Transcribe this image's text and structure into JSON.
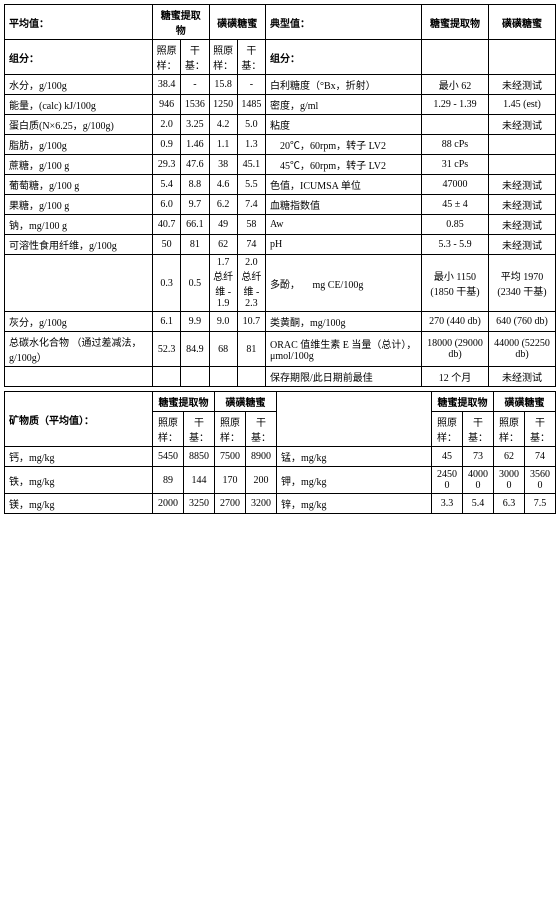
{
  "left_block": {
    "title": "平均值：",
    "row_head": "组分：",
    "group1": "糖蜜提取物",
    "group2": "磺磺糖蜜",
    "sub1": "照原样：",
    "sub2": "干基：",
    "rows": [
      [
        "水分，g/100g",
        "38.4",
        "-",
        "15.8",
        "-"
      ],
      [
        "能量，(calc) kJ/100g",
        "946",
        "1536",
        "1250",
        "1485"
      ],
      [
        "蛋白质(N×6.25，g/100g)",
        "2.0",
        "3.25",
        "4.2",
        "5.0"
      ],
      [
        "脂肪，g/100g",
        "0.9",
        "1.46",
        "1.1",
        "1.3"
      ],
      [
        "蔗糖，g/100 g",
        "29.3",
        "47.6",
        "38",
        "45.1"
      ],
      [
        "葡萄糖，g/100 g",
        "5.4",
        "8.8",
        "4.6",
        "5.5"
      ],
      [
        "果糖，g/100 g",
        "6.0",
        "9.7",
        "6.2",
        "7.4"
      ],
      [
        "钠，mg/100 g",
        "40.7",
        "66.1",
        "49",
        "58"
      ],
      [
        "可溶性食用纤维，g/100g",
        "50",
        "81",
        "62",
        "74"
      ],
      [
        "",
        "0.3",
        "0.5",
        "1.7\n总纤维 - 1.9",
        "2.0\n总纤维 - 2.3"
      ],
      [
        "灰分，g/100g",
        "6.1",
        "9.9",
        "9.0",
        "10.7"
      ],
      [
        "总碳水化合物\n（通过差减法，g/100g）",
        "52.3",
        "84.9",
        "68",
        "81"
      ]
    ]
  },
  "right_block": {
    "title": "典型值：",
    "row_head": "组分：",
    "group1": "糖蜜提取物",
    "group2": "磺磺糖蜜",
    "rows": [
      [
        "白利糖度（°Bx，折射）",
        "最小 62",
        "未经测试"
      ],
      [
        "密度，g/ml",
        "1.29 - 1.39",
        "1.45 (est)"
      ],
      [
        "粘度",
        "",
        "未经测试"
      ],
      [
        "　20℃，60rpm，转子 LV2",
        "88 cPs",
        ""
      ],
      [
        "　45℃，60rpm，转子 LV2",
        "31 cPs",
        ""
      ],
      [
        "色值，ICUMSA 单位",
        "47000",
        "未经测试"
      ],
      [
        "血糖指数值",
        "45 ± 4",
        "未经测试"
      ],
      [
        "Aw",
        "0.85",
        "未经测试"
      ],
      [
        "pH",
        "5.3 - 5.9",
        "未经测试"
      ],
      [
        "多酚，\n　mg CE/100g",
        "最小 1150\n(1850 干基)",
        "平均 1970\n(2340 干基)"
      ],
      [
        "类黄酮，mg/100g",
        "270 (440 db)",
        "640 (760 db)"
      ],
      [
        "ORAC 值维生素 E 当量（总计），μmol/100g",
        "18000\n(29000 db)",
        "44000\n(52250 db)"
      ],
      [
        "保存期限/此日期前最佳",
        "12 个月",
        "未经测试"
      ]
    ]
  },
  "minerals_left": {
    "title": "矿物质（平均值）：",
    "group1": "糖蜜提取物",
    "group2": "磺磺糖蜜",
    "sub1": "照原样：",
    "sub2": "干基：",
    "rows": [
      [
        "钙，mg/kg",
        "5450",
        "8850",
        "7500",
        "8900"
      ],
      [
        "铁，mg/kg",
        "89",
        "144",
        "170",
        "200"
      ],
      [
        "镁，mg/kg",
        "2000",
        "3250",
        "2700",
        "3200"
      ]
    ]
  },
  "minerals_right": {
    "group1": "糖蜜提取物",
    "group2": "磺磺糖蜜",
    "sub1": "照原样：",
    "sub2": "干基：",
    "rows": [
      [
        "锰，mg/kg",
        "45",
        "73",
        "62",
        "74"
      ],
      [
        "钾，mg/kg",
        "24500",
        "40000",
        "30000",
        "35600"
      ],
      [
        "锌，mg/kg",
        "3.3",
        "5.4",
        "6.3",
        "7.5"
      ]
    ]
  }
}
